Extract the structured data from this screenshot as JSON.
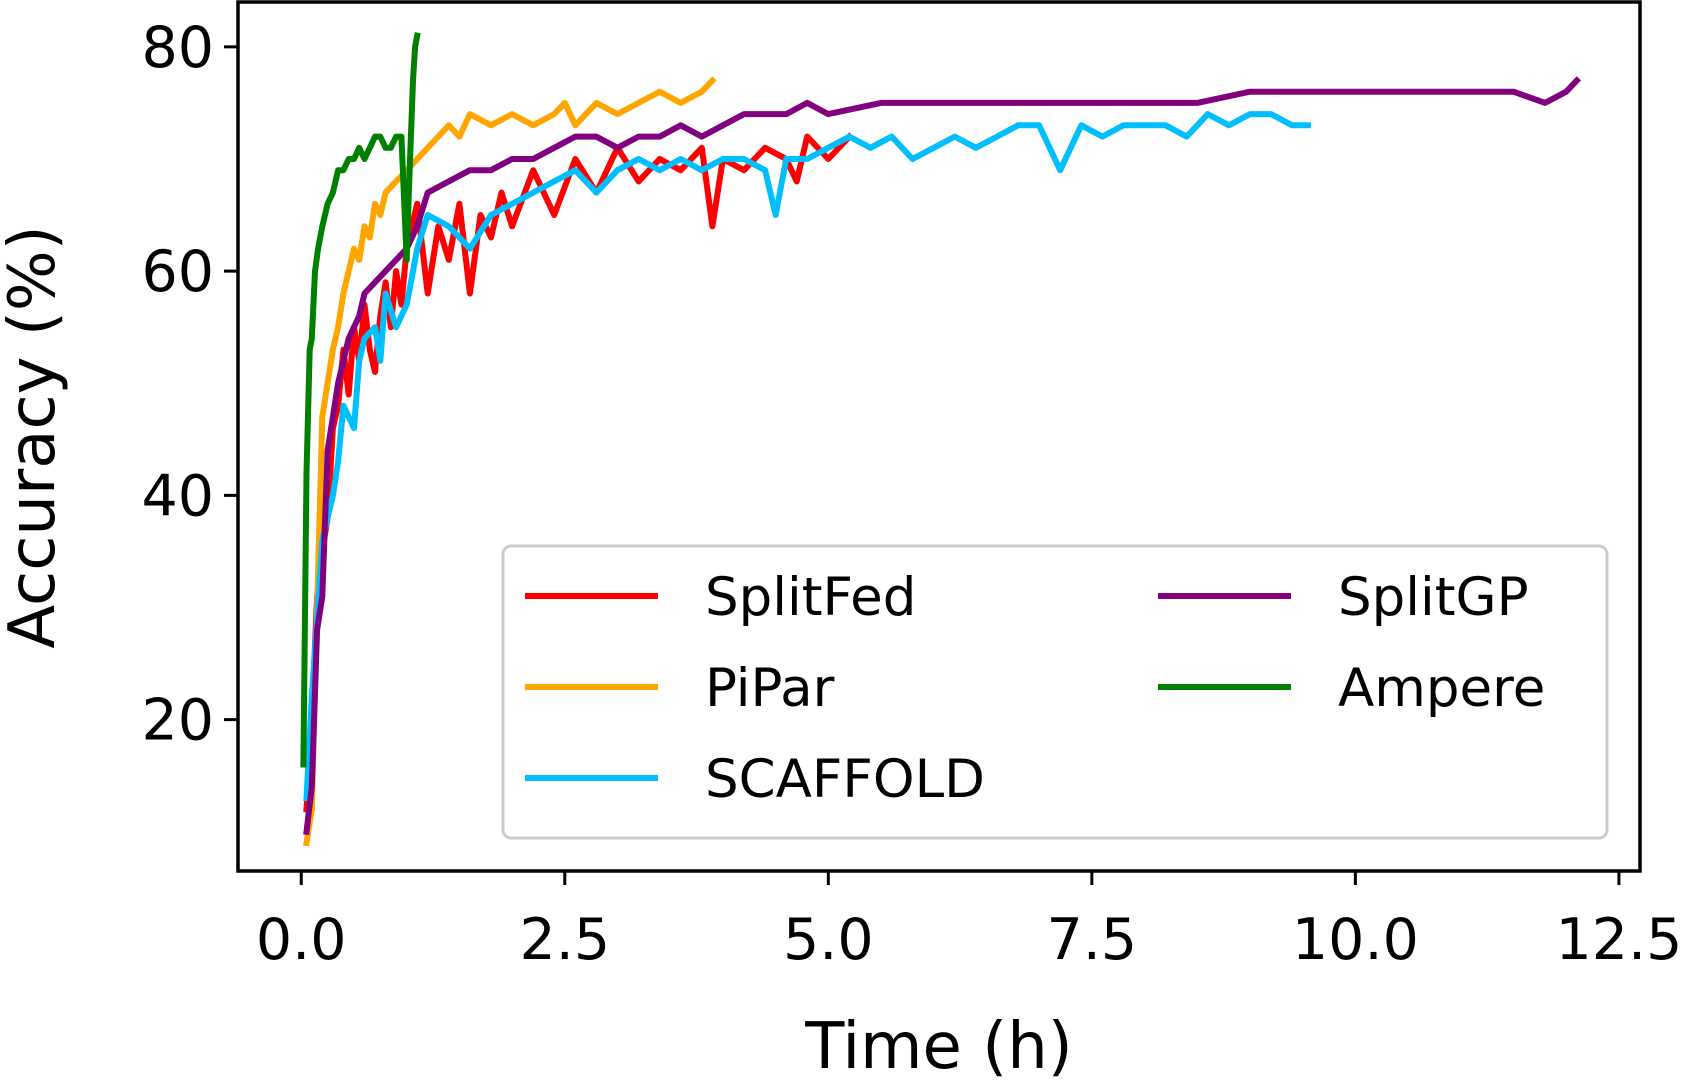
{
  "chart_data": {
    "type": "line",
    "title": "",
    "xlabel": "Time (h)",
    "ylabel": "Accuracy (%)",
    "xlim": [
      -0.6,
      12.7
    ],
    "ylim": [
      6.5,
      84.0
    ],
    "xticks": [
      0.0,
      2.5,
      5.0,
      7.5,
      10.0,
      12.5
    ],
    "xtick_labels": [
      "0.0",
      "2.5",
      "5.0",
      "7.5",
      "10.0",
      "12.5"
    ],
    "yticks": [
      20,
      40,
      60,
      80
    ],
    "ytick_labels": [
      "20",
      "40",
      "60",
      "80"
    ],
    "grid": false,
    "legend_location": "lower-right",
    "series": [
      {
        "name": "SplitFed",
        "color": "#ff0000",
        "x": [
          0.05,
          0.1,
          0.15,
          0.2,
          0.25,
          0.3,
          0.35,
          0.4,
          0.45,
          0.5,
          0.55,
          0.6,
          0.65,
          0.7,
          0.75,
          0.8,
          0.85,
          0.9,
          0.95,
          1.0,
          1.1,
          1.2,
          1.3,
          1.4,
          1.5,
          1.6,
          1.7,
          1.8,
          1.9,
          2.0,
          2.2,
          2.4,
          2.6,
          2.8,
          3.0,
          3.2,
          3.4,
          3.6,
          3.8,
          3.9,
          4.0,
          4.2,
          4.4,
          4.6,
          4.7,
          4.8,
          5.0,
          5.2
        ],
        "y": [
          12,
          20,
          31,
          35,
          38,
          46,
          48,
          53,
          49,
          55,
          52,
          57,
          53,
          51,
          56,
          59,
          55,
          60,
          57,
          62,
          66,
          58,
          64,
          61,
          66,
          58,
          65,
          63,
          67,
          64,
          69,
          65,
          70,
          67,
          71,
          68,
          70,
          69,
          71,
          64,
          70,
          69,
          71,
          70,
          68,
          72,
          70,
          72
        ]
      },
      {
        "name": "PiPar",
        "color": "#ffa500",
        "x": [
          0.05,
          0.1,
          0.15,
          0.2,
          0.25,
          0.3,
          0.35,
          0.4,
          0.45,
          0.5,
          0.55,
          0.6,
          0.65,
          0.7,
          0.75,
          0.8,
          0.9,
          1.0,
          1.1,
          1.2,
          1.3,
          1.4,
          1.5,
          1.6,
          1.8,
          2.0,
          2.2,
          2.4,
          2.5,
          2.6,
          2.8,
          3.0,
          3.2,
          3.4,
          3.6,
          3.8,
          3.9
        ],
        "y": [
          9,
          12,
          30,
          47,
          50,
          53,
          55,
          58,
          60,
          62,
          61,
          64,
          63,
          66,
          65,
          67,
          68,
          69,
          70,
          71,
          72,
          73,
          72,
          74,
          73,
          74,
          73,
          74,
          75,
          73,
          75,
          74,
          75,
          76,
          75,
          76,
          77
        ]
      },
      {
        "name": "SCAFFOLD",
        "color": "#00bfff",
        "x": [
          0.05,
          0.1,
          0.2,
          0.3,
          0.35,
          0.4,
          0.5,
          0.55,
          0.6,
          0.7,
          0.75,
          0.8,
          0.9,
          1.0,
          1.1,
          1.2,
          1.4,
          1.6,
          1.8,
          2.0,
          2.2,
          2.4,
          2.6,
          2.8,
          3.0,
          3.2,
          3.4,
          3.6,
          3.8,
          4.0,
          4.2,
          4.4,
          4.5,
          4.6,
          4.8,
          5.0,
          5.2,
          5.4,
          5.6,
          5.8,
          6.0,
          6.2,
          6.4,
          6.6,
          6.8,
          7.0,
          7.2,
          7.4,
          7.6,
          7.8,
          8.0,
          8.2,
          8.4,
          8.6,
          8.8,
          9.0,
          9.2,
          9.4,
          9.55
        ],
        "y": [
          13,
          22,
          36,
          40,
          43,
          48,
          46,
          52,
          54,
          55,
          52,
          58,
          55,
          57,
          62,
          65,
          64,
          62,
          65,
          66,
          67,
          68,
          69,
          67,
          69,
          70,
          69,
          70,
          69,
          70,
          70,
          69,
          65,
          70,
          70,
          71,
          72,
          71,
          72,
          70,
          71,
          72,
          71,
          72,
          73,
          73,
          69,
          73,
          72,
          73,
          73,
          73,
          72,
          74,
          73,
          74,
          74,
          73,
          73
        ]
      },
      {
        "name": "SplitGP",
        "color": "#800080",
        "x": [
          0.05,
          0.1,
          0.15,
          0.2,
          0.25,
          0.3,
          0.35,
          0.4,
          0.45,
          0.5,
          0.55,
          0.6,
          0.7,
          0.8,
          0.9,
          1.0,
          1.1,
          1.2,
          1.4,
          1.6,
          1.8,
          2.0,
          2.2,
          2.4,
          2.6,
          2.8,
          3.0,
          3.2,
          3.4,
          3.6,
          3.8,
          4.0,
          4.2,
          4.4,
          4.6,
          4.8,
          5.0,
          5.5,
          6.0,
          6.5,
          7.0,
          7.5,
          8.0,
          8.5,
          9.0,
          9.5,
          10.0,
          10.5,
          11.0,
          11.5,
          11.8,
          12.0,
          12.1
        ],
        "y": [
          10,
          14,
          28,
          31,
          44,
          47,
          50,
          52,
          54,
          55,
          56,
          58,
          59,
          60,
          61,
          62,
          64,
          67,
          68,
          69,
          69,
          70,
          70,
          71,
          72,
          72,
          71,
          72,
          72,
          73,
          72,
          73,
          74,
          74,
          74,
          75,
          74,
          75,
          75,
          75,
          75,
          75,
          75,
          75,
          76,
          76,
          76,
          76,
          76,
          76,
          75,
          76,
          77
        ]
      },
      {
        "name": "Ampere",
        "color": "#008000",
        "x": [
          0.02,
          0.05,
          0.08,
          0.1,
          0.13,
          0.16,
          0.2,
          0.25,
          0.3,
          0.35,
          0.4,
          0.45,
          0.5,
          0.55,
          0.6,
          0.65,
          0.7,
          0.75,
          0.8,
          0.85,
          0.9,
          0.95,
          1.0,
          1.02,
          1.04,
          1.06,
          1.08,
          1.1
        ],
        "y": [
          16,
          42,
          53,
          54,
          60,
          62,
          64,
          66,
          67,
          69,
          69,
          70,
          70,
          71,
          70,
          71,
          72,
          72,
          71,
          71,
          72,
          72,
          61,
          67,
          72,
          77,
          80,
          81
        ]
      }
    ]
  }
}
